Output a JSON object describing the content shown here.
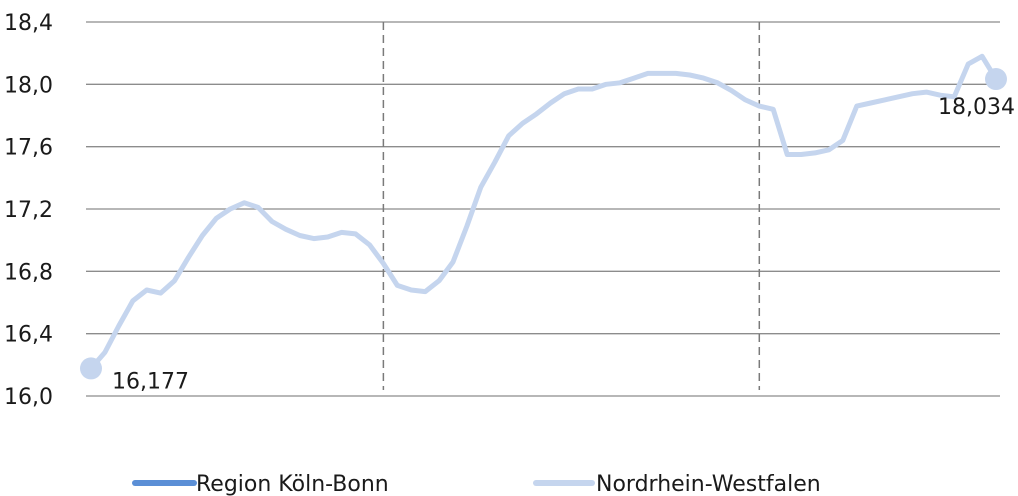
{
  "chart_data": {
    "type": "line",
    "title": "",
    "xlabel": "",
    "ylabel": "",
    "ylim": [
      16.0,
      18.4
    ],
    "yticks": [
      "16,0",
      "16,4",
      "16,8",
      "17,2",
      "17,6",
      "18,0",
      "18,4"
    ],
    "ytick_values": [
      16.0,
      16.4,
      16.8,
      17.2,
      17.6,
      18.0,
      18.4
    ],
    "grid": "horizontal",
    "period_separators_at_index": [
      21,
      48
    ],
    "legend_position": "bottom",
    "colors": {
      "Region Köln-Bonn": "#5b8fd6",
      "Nordrhein-Westfalen": "#c5d5ee"
    },
    "series": [
      {
        "name": "Region Köln-Bonn",
        "values": []
      },
      {
        "name": "Nordrhein-Westfalen",
        "values": [
          16.177,
          16.28,
          16.45,
          16.61,
          16.68,
          16.66,
          16.74,
          16.89,
          17.03,
          17.14,
          17.2,
          17.24,
          17.21,
          17.12,
          17.07,
          17.03,
          17.01,
          17.02,
          17.05,
          17.04,
          16.97,
          16.85,
          16.71,
          16.68,
          16.67,
          16.74,
          16.86,
          17.09,
          17.34,
          17.5,
          17.67,
          17.75,
          17.81,
          17.88,
          17.94,
          17.97,
          17.97,
          18.0,
          18.01,
          18.04,
          18.07,
          18.07,
          18.07,
          18.06,
          18.04,
          18.01,
          17.96,
          17.9,
          17.86,
          17.84,
          17.55,
          17.55,
          17.56,
          17.58,
          17.64,
          17.86,
          17.88,
          17.9,
          17.92,
          17.94,
          17.95,
          17.93,
          17.92,
          18.13,
          18.18,
          18.034
        ]
      }
    ],
    "data_labels": [
      {
        "series": "Nordrhein-Westfalen",
        "index": 0,
        "text": "16,177"
      },
      {
        "series": "Nordrhein-Westfalen",
        "index": 65,
        "text": "18,034"
      }
    ]
  }
}
